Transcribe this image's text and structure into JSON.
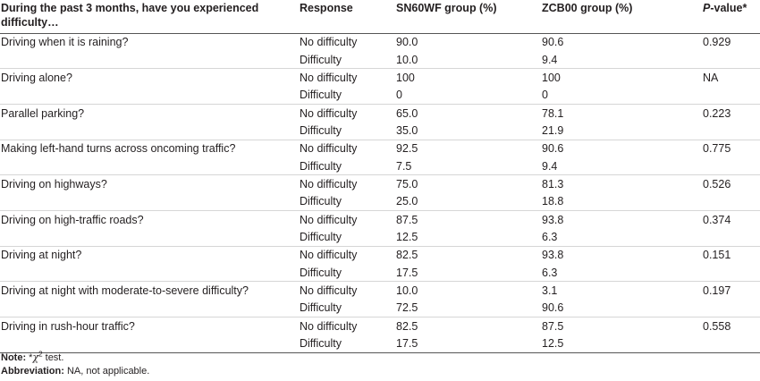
{
  "header": {
    "question": "During the past 3 months, have you experienced difficulty…",
    "response": "Response",
    "group1": "SN60WF group (%)",
    "group2": "ZCB00 group (%)",
    "pvalue_italic": "P",
    "pvalue_rest": "-value*"
  },
  "rows": [
    {
      "question": "Driving when it is raining?",
      "r1": "No difficulty",
      "a1": "90.0",
      "b1": "90.6",
      "p": "0.929",
      "r2": "Difficulty",
      "a2": "10.0",
      "b2": "9.4"
    },
    {
      "question": "Driving alone?",
      "r1": "No difficulty",
      "a1": "100",
      "b1": "100",
      "p": "NA",
      "r2": "Difficulty",
      "a2": "0",
      "b2": "0"
    },
    {
      "question": "Parallel parking?",
      "r1": "No difficulty",
      "a1": "65.0",
      "b1": "78.1",
      "p": "0.223",
      "r2": "Difficulty",
      "a2": "35.0",
      "b2": "21.9"
    },
    {
      "question": "Making left-hand turns across oncoming traffic?",
      "r1": "No difficulty",
      "a1": "92.5",
      "b1": "90.6",
      "p": "0.775",
      "r2": "Difficulty",
      "a2": "7.5",
      "b2": "9.4"
    },
    {
      "question": "Driving on highways?",
      "r1": "No difficulty",
      "a1": "75.0",
      "b1": "81.3",
      "p": "0.526",
      "r2": "Difficulty",
      "a2": "25.0",
      "b2": "18.8"
    },
    {
      "question": "Driving on high-traffic roads?",
      "r1": "No difficulty",
      "a1": "87.5",
      "b1": "93.8",
      "p": "0.374",
      "r2": "Difficulty",
      "a2": "12.5",
      "b2": "6.3"
    },
    {
      "question": "Driving at night?",
      "r1": "No difficulty",
      "a1": "82.5",
      "b1": "93.8",
      "p": "0.151",
      "r2": "Difficulty",
      "a2": "17.5",
      "b2": "6.3"
    },
    {
      "question": "Driving at night with moderate-to-severe difficulty?",
      "r1": "No difficulty",
      "a1": "10.0",
      "b1": "3.1",
      "p": "0.197",
      "r2": "Difficulty",
      "a2": "72.5",
      "b2": "90.6"
    },
    {
      "question": "Driving in rush-hour traffic?",
      "r1": "No difficulty",
      "a1": "82.5",
      "b1": "87.5",
      "p": "0.558",
      "r2": "Difficulty",
      "a2": "17.5",
      "b2": "12.5"
    }
  ],
  "notes": {
    "note_label": "Note:",
    "note_star": "*",
    "note_chi": "χ",
    "note_sup": "2",
    "note_text": " test.",
    "abbr_label": "Abbreviation:",
    "abbr_text": " NA, not applicable."
  }
}
